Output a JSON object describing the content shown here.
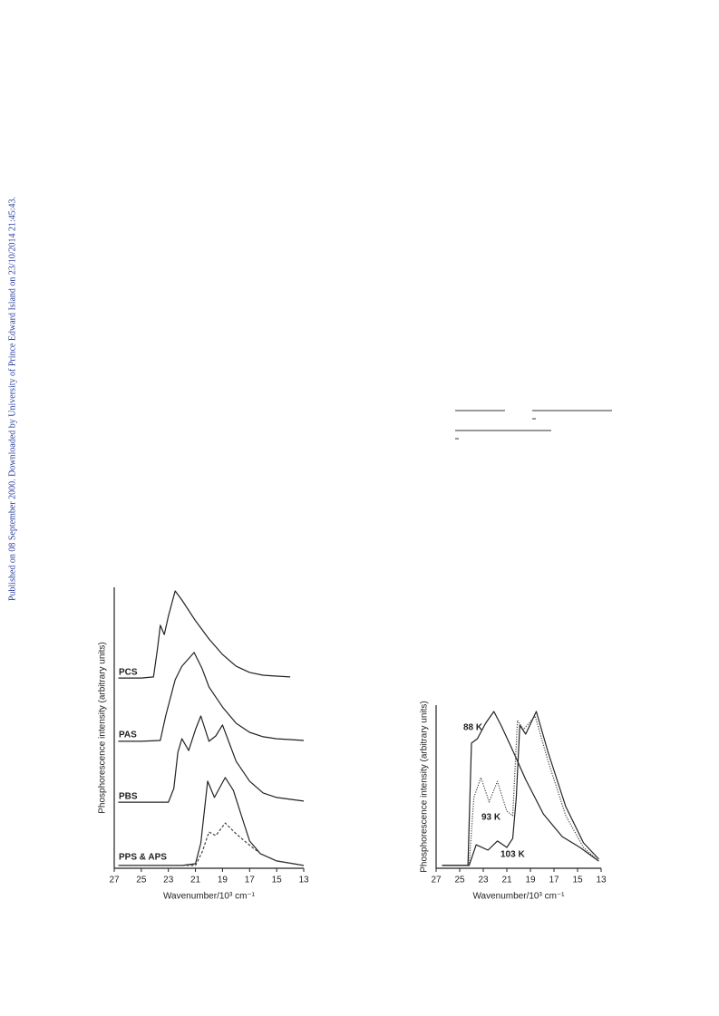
{
  "sidebar_text": "Published on 08 September 2000. Downloaded by University of Prince Edward Island on 23/10/2014 21:45:43.",
  "chart_data": [
    {
      "type": "line",
      "xlabel": "Wavenumber/10³ cm⁻¹",
      "ylabel": "Phosphorescence intensity (arbitrary units)",
      "xlim": [
        27,
        13
      ],
      "ylim": [
        0,
        100
      ],
      "xticks": [
        27,
        25,
        23,
        21,
        19,
        17,
        15,
        13
      ],
      "series": [
        {
          "name": "PCS",
          "color": "#222222",
          "style": "solid",
          "x": [
            26.7,
            25,
            24.1,
            23.8,
            23.6,
            23.3,
            23.0,
            22.5,
            22.0,
            21.0,
            20.0,
            19.0,
            18.0,
            17.0,
            16.0,
            15.0,
            14.0
          ],
          "values": [
            67.7,
            67.7,
            68.1,
            78.4,
            86.5,
            83.2,
            89.7,
            98.7,
            95.5,
            88.1,
            81.6,
            76.1,
            71.9,
            69.7,
            68.7,
            68.4,
            68.1
          ]
        },
        {
          "name": "PAS",
          "color": "#222222",
          "style": "solid",
          "x": [
            26.7,
            25,
            23.6,
            23.2,
            22.5,
            22.0,
            21.1,
            20.5,
            20.0,
            19.0,
            18.0,
            17.0,
            16.0,
            15.0,
            14.0,
            13.0
          ],
          "values": [
            45.2,
            45.2,
            45.5,
            54.2,
            67.1,
            71.9,
            76.8,
            71.0,
            64.5,
            57.4,
            51.6,
            48.4,
            46.8,
            46.1,
            45.8,
            45.5
          ]
        },
        {
          "name": "PBS",
          "color": "#222222",
          "style": "solid",
          "x": [
            26.7,
            25,
            23,
            22.6,
            22.3,
            22.0,
            21.5,
            21.0,
            20.6,
            20.0,
            19.5,
            19.0,
            18.0,
            17.0,
            16.0,
            15.0,
            13.0
          ],
          "values": [
            23.5,
            23.5,
            23.5,
            28.4,
            41.3,
            46.1,
            41.9,
            49.4,
            54.2,
            45.2,
            47.1,
            51.0,
            38.1,
            31.0,
            26.8,
            25.2,
            23.9
          ]
        },
        {
          "name": "PPS & APS",
          "color": "#222222",
          "style": "solid",
          "x": [
            26.7,
            22,
            21,
            20.6,
            20.1,
            19.6,
            18.8,
            18.2,
            17.6,
            17.0,
            16.2,
            15.0,
            13.0
          ],
          "values": [
            1.0,
            1.0,
            1.6,
            9.0,
            31.0,
            25.2,
            32.3,
            27.7,
            18.7,
            9.7,
            5.2,
            2.6,
            1.0
          ]
        },
        {
          "color": "#444444",
          "style": "dashed",
          "x": [
            26.7,
            21,
            20.5,
            20.0,
            19.5,
            18.8,
            18.0,
            17.2,
            16.2,
            15.0,
            13.0
          ],
          "values": [
            1.0,
            1.0,
            5.8,
            12.9,
            11.6,
            16.1,
            12.3,
            9.0,
            5.2,
            2.6,
            1.0
          ]
        }
      ]
    },
    {
      "type": "line",
      "xlabel": "Wavenumber/10³ cm⁻¹",
      "ylabel": "Phosphorescence intensity (arbitrary units)",
      "xlim": [
        27,
        13
      ],
      "ylim": [
        0,
        100
      ],
      "xticks": [
        27,
        25,
        23,
        21,
        19,
        17,
        15,
        13
      ],
      "series": [
        {
          "name": "88 K",
          "color": "#222222",
          "style": "solid",
          "x": [
            26.5,
            24.3,
            24.0,
            23.5,
            22.8,
            22.1,
            21.5,
            20.5,
            19.4,
            17.9,
            16.3,
            14.8,
            13.2
          ],
          "values": [
            1.7,
            1.7,
            76.7,
            79.4,
            88.9,
            96.1,
            87.8,
            72.2,
            54.4,
            33.3,
            19.4,
            12.8,
            4.4
          ]
        },
        {
          "name": "93 K",
          "color": "#444444",
          "style": "dotted",
          "x": [
            26.5,
            24.2,
            23.8,
            23.2,
            22.5,
            21.8,
            21.0,
            20.5,
            20.1,
            19.6,
            18.6,
            17.5,
            16.0,
            14.5,
            13.2
          ],
          "values": [
            1.7,
            1.7,
            43.3,
            55.6,
            40.6,
            53.3,
            35.0,
            32.2,
            90.6,
            85.0,
            93.3,
            65.6,
            32.2,
            12.8,
            4.4
          ]
        },
        {
          "name": "103 K",
          "color": "#222222",
          "style": "solid",
          "x": [
            26.5,
            24.2,
            23.6,
            22.6,
            21.8,
            21.0,
            20.5,
            20.2,
            19.9,
            19.4,
            18.5,
            17.5,
            16.0,
            14.5,
            13.2
          ],
          "values": [
            1.7,
            1.7,
            14.4,
            11.1,
            16.7,
            12.8,
            18.3,
            43.3,
            87.8,
            82.2,
            96.1,
            71.1,
            37.8,
            15.6,
            5.6
          ]
        }
      ]
    }
  ]
}
